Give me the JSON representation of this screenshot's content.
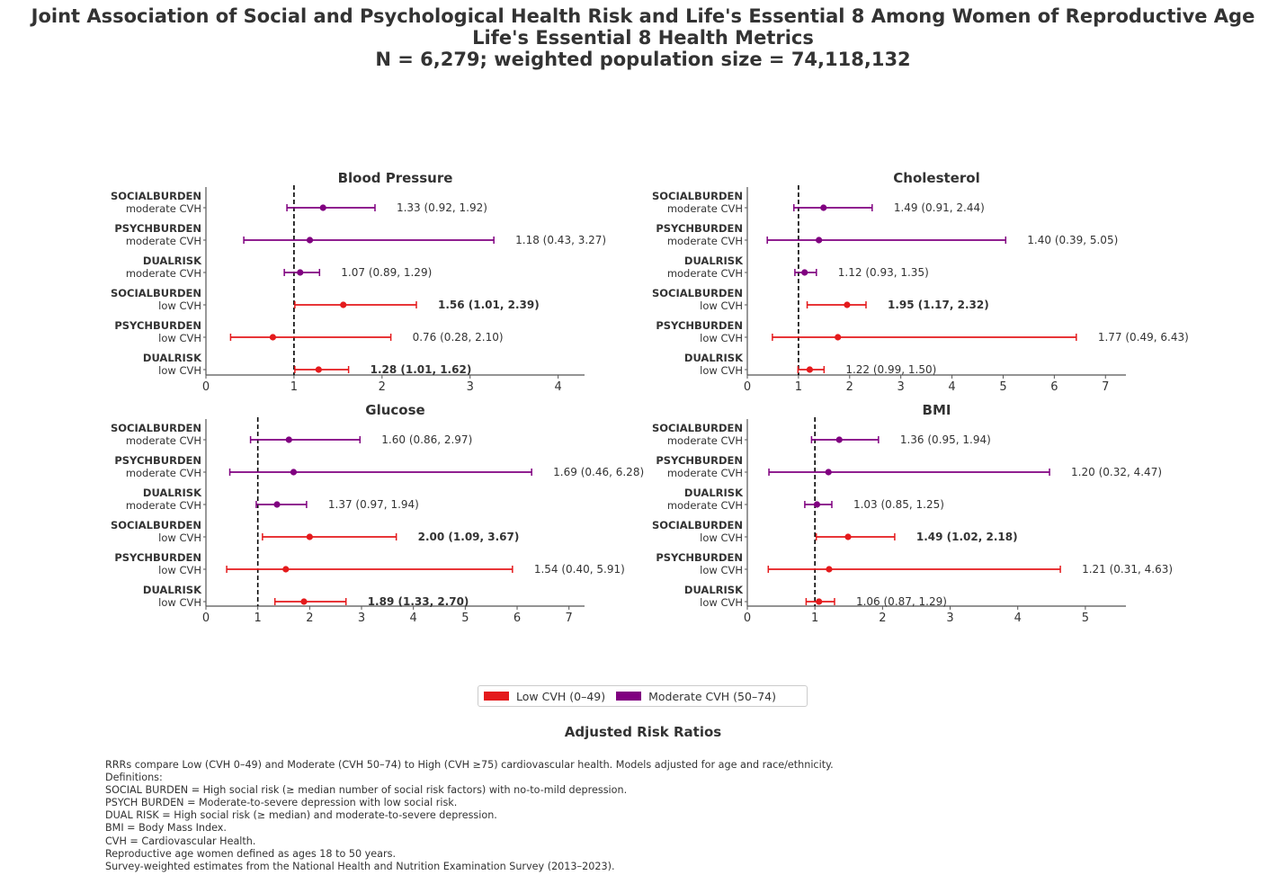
{
  "title": {
    "line1": "Joint Association of Social and Psychological Health Risk and Life's Essential 8 Among Women of Reproductive Age",
    "line2": "Life's Essential 8 Health Metrics",
    "line3": "N = 6,279; weighted population size = 74,118,132"
  },
  "colors": {
    "low": "#e41a1c",
    "moderate": "#800080"
  },
  "legend": {
    "low_label": "Low CVH (0–49)",
    "moderate_label": "Moderate CVH (50–74)"
  },
  "x_axis_title": "Adjusted Risk Ratios",
  "notes": [
    "RRRs compare Low (CVH 0–49) and Moderate (CVH 50–74) to High (CVH ≥75) cardiovascular health. Models adjusted for age and race/ethnicity.",
    "Definitions:",
    "SOCIAL BURDEN = High social risk (≥ median number of social risk factors) with no-to-mild depression.",
    "PSYCH BURDEN = Moderate-to-severe depression with low social risk.",
    "DUAL RISK = High social risk (≥ median) and moderate-to-severe depression.",
    "BMI = Body Mass Index.",
    "CVH = Cardiovascular Health.",
    "Reproductive age women defined as ages 18 to 50 years.",
    "Survey-weighted estimates from the National Health and Nutrition Examination Survey (2013–2023)."
  ],
  "chart_data": [
    {
      "type": "forest",
      "title": "Blood Pressure",
      "xlim": [
        0,
        4.3
      ],
      "xticks": [
        0,
        1,
        2,
        3,
        4
      ],
      "reference": 1,
      "rows": [
        {
          "group": "SOCIALBURDEN",
          "cvh": "moderate CVH",
          "series": "moderate",
          "est": 1.33,
          "lo": 0.92,
          "hi": 1.92,
          "label": "1.33 (0.92, 1.92)",
          "significant": false
        },
        {
          "group": "PSYCHBURDEN",
          "cvh": "moderate CVH",
          "series": "moderate",
          "est": 1.18,
          "lo": 0.43,
          "hi": 3.27,
          "label": "1.18 (0.43, 3.27)",
          "significant": false
        },
        {
          "group": "DUALRISK",
          "cvh": "moderate CVH",
          "series": "moderate",
          "est": 1.07,
          "lo": 0.89,
          "hi": 1.29,
          "label": "1.07 (0.89, 1.29)",
          "significant": false
        },
        {
          "group": "SOCIALBURDEN",
          "cvh": "low CVH",
          "series": "low",
          "est": 1.56,
          "lo": 1.01,
          "hi": 2.39,
          "label": "1.56 (1.01, 2.39)",
          "significant": true
        },
        {
          "group": "PSYCHBURDEN",
          "cvh": "low CVH",
          "series": "low",
          "est": 0.76,
          "lo": 0.28,
          "hi": 2.1,
          "label": "0.76 (0.28, 2.10)",
          "significant": false
        },
        {
          "group": "DUALRISK",
          "cvh": "low CVH",
          "series": "low",
          "est": 1.28,
          "lo": 1.01,
          "hi": 1.62,
          "label": "1.28 (1.01, 1.62)",
          "significant": true
        }
      ]
    },
    {
      "type": "forest",
      "title": "Cholesterol",
      "xlim": [
        0,
        7.4
      ],
      "xticks": [
        0,
        1,
        2,
        3,
        4,
        5,
        6,
        7
      ],
      "reference": 1,
      "rows": [
        {
          "group": "SOCIALBURDEN",
          "cvh": "moderate CVH",
          "series": "moderate",
          "est": 1.49,
          "lo": 0.91,
          "hi": 2.44,
          "label": "1.49 (0.91, 2.44)",
          "significant": false
        },
        {
          "group": "PSYCHBURDEN",
          "cvh": "moderate CVH",
          "series": "moderate",
          "est": 1.4,
          "lo": 0.39,
          "hi": 5.05,
          "label": "1.40 (0.39, 5.05)",
          "significant": false
        },
        {
          "group": "DUALRISK",
          "cvh": "moderate CVH",
          "series": "moderate",
          "est": 1.12,
          "lo": 0.93,
          "hi": 1.35,
          "label": "1.12 (0.93, 1.35)",
          "significant": false
        },
        {
          "group": "SOCIALBURDEN",
          "cvh": "low CVH",
          "series": "low",
          "est": 1.95,
          "lo": 1.17,
          "hi": 2.32,
          "label": "1.95 (1.17, 2.32)",
          "significant": true
        },
        {
          "group": "PSYCHBURDEN",
          "cvh": "low CVH",
          "series": "low",
          "est": 1.77,
          "lo": 0.49,
          "hi": 6.43,
          "label": "1.77 (0.49, 6.43)",
          "significant": false
        },
        {
          "group": "DUALRISK",
          "cvh": "low CVH",
          "series": "low",
          "est": 1.22,
          "lo": 0.99,
          "hi": 1.5,
          "label": "1.22 (0.99, 1.50)",
          "significant": false
        }
      ]
    },
    {
      "type": "forest",
      "title": "Glucose",
      "xlim": [
        0,
        7.3
      ],
      "xticks": [
        0,
        1,
        2,
        3,
        4,
        5,
        6,
        7
      ],
      "reference": 1,
      "rows": [
        {
          "group": "SOCIALBURDEN",
          "cvh": "moderate CVH",
          "series": "moderate",
          "est": 1.6,
          "lo": 0.86,
          "hi": 2.97,
          "label": "1.60 (0.86, 2.97)",
          "significant": false
        },
        {
          "group": "PSYCHBURDEN",
          "cvh": "moderate CVH",
          "series": "moderate",
          "est": 1.69,
          "lo": 0.46,
          "hi": 6.28,
          "label": "1.69 (0.46, 6.28)",
          "significant": false
        },
        {
          "group": "DUALRISK",
          "cvh": "moderate CVH",
          "series": "moderate",
          "est": 1.37,
          "lo": 0.97,
          "hi": 1.94,
          "label": "1.37 (0.97, 1.94)",
          "significant": false
        },
        {
          "group": "SOCIALBURDEN",
          "cvh": "low CVH",
          "series": "low",
          "est": 2.0,
          "lo": 1.09,
          "hi": 3.67,
          "label": "2.00 (1.09, 3.67)",
          "significant": true
        },
        {
          "group": "PSYCHBURDEN",
          "cvh": "low CVH",
          "series": "low",
          "est": 1.54,
          "lo": 0.4,
          "hi": 5.91,
          "label": "1.54 (0.40, 5.91)",
          "significant": false
        },
        {
          "group": "DUALRISK",
          "cvh": "low CVH",
          "series": "low",
          "est": 1.89,
          "lo": 1.33,
          "hi": 2.7,
          "label": "1.89 (1.33, 2.70)",
          "significant": true
        }
      ]
    },
    {
      "type": "forest",
      "title": "BMI",
      "xlim": [
        0,
        5.6
      ],
      "xticks": [
        0,
        1,
        2,
        3,
        4,
        5
      ],
      "reference": 1,
      "rows": [
        {
          "group": "SOCIALBURDEN",
          "cvh": "moderate CVH",
          "series": "moderate",
          "est": 1.36,
          "lo": 0.95,
          "hi": 1.94,
          "label": "1.36 (0.95, 1.94)",
          "significant": false
        },
        {
          "group": "PSYCHBURDEN",
          "cvh": "moderate CVH",
          "series": "moderate",
          "est": 1.2,
          "lo": 0.32,
          "hi": 4.47,
          "label": "1.20 (0.32, 4.47)",
          "significant": false
        },
        {
          "group": "DUALRISK",
          "cvh": "moderate CVH",
          "series": "moderate",
          "est": 1.03,
          "lo": 0.85,
          "hi": 1.25,
          "label": "1.03 (0.85, 1.25)",
          "significant": false
        },
        {
          "group": "SOCIALBURDEN",
          "cvh": "low CVH",
          "series": "low",
          "est": 1.49,
          "lo": 1.02,
          "hi": 2.18,
          "label": "1.49 (1.02, 2.18)",
          "significant": true
        },
        {
          "group": "PSYCHBURDEN",
          "cvh": "low CVH",
          "series": "low",
          "est": 1.21,
          "lo": 0.31,
          "hi": 4.63,
          "label": "1.21 (0.31, 4.63)",
          "significant": false
        },
        {
          "group": "DUALRISK",
          "cvh": "low CVH",
          "series": "low",
          "est": 1.06,
          "lo": 0.87,
          "hi": 1.29,
          "label": "1.06 (0.87, 1.29)",
          "significant": false
        }
      ]
    }
  ]
}
